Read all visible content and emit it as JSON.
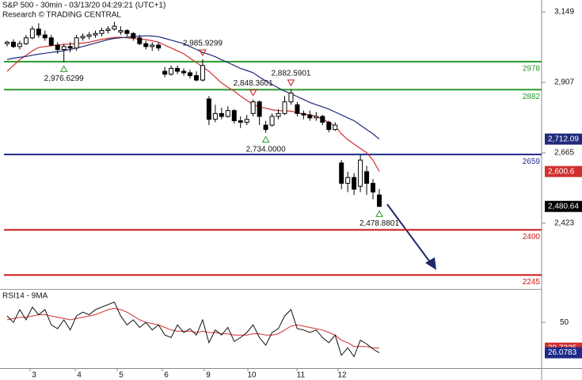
{
  "chart_data": {
    "type": "candlestick",
    "title": "S&P 500 - 30min - 03/13/20 04:29:21 (UTC+1)",
    "subtitle": "Research © TRADING CENTRAL",
    "open": [
      3040,
      3045,
      3030,
      3040,
      3060,
      3090,
      3070,
      3060,
      3035,
      3020,
      3030,
      3025,
      3060,
      3065,
      3070,
      3075,
      3085,
      3090,
      3080,
      3085,
      3075,
      3060,
      3040,
      3030,
      3035,
      2945,
      2935,
      2955,
      2945,
      2940,
      2930,
      2915,
      2850,
      2780,
      2800,
      2790,
      2810,
      2775,
      2770,
      2800,
      2840,
      2760,
      2760,
      2790,
      2800,
      2840,
      2830,
      2800,
      2795,
      2785,
      2790,
      2770,
      2745,
      2630,
      2560,
      2580,
      2550,
      2600,
      2560,
      2520
    ],
    "high": [
      3050,
      3055,
      3050,
      3070,
      3100,
      3110,
      3085,
      3070,
      3045,
      3040,
      3045,
      3070,
      3075,
      3080,
      3085,
      3095,
      3100,
      3115,
      3100,
      3090,
      3080,
      3070,
      3050,
      3045,
      3045,
      2960,
      2965,
      2965,
      2955,
      2950,
      2945,
      2985.9299,
      2860,
      2830,
      2820,
      2825,
      2815,
      2790,
      2795,
      2848.3601,
      2845,
      2775,
      2800,
      2815,
      2860,
      2882.5901,
      2840,
      2810,
      2810,
      2805,
      2795,
      2775,
      2770,
      2640,
      2600,
      2595,
      2659,
      2620,
      2575,
      2540
    ],
    "low": [
      3030,
      3025,
      3020,
      3035,
      3055,
      3060,
      3050,
      3030,
      3005,
      2976.6299,
      3010,
      3015,
      3050,
      3055,
      3060,
      3065,
      3075,
      3085,
      3070,
      3065,
      3050,
      3035,
      3020,
      3015,
      3015,
      2925,
      2930,
      2935,
      2930,
      2920,
      2910,
      2910,
      2760,
      2770,
      2780,
      2785,
      2765,
      2750,
      2760,
      2790,
      2760,
      2734,
      2755,
      2780,
      2795,
      2830,
      2790,
      2780,
      2775,
      2775,
      2760,
      2735,
      2740,
      2540,
      2530,
      2520,
      2530,
      2520,
      2505,
      2478.8801
    ],
    "close": [
      3045,
      3030,
      3040,
      3060,
      3090,
      3070,
      3060,
      3035,
      3020,
      3030,
      3025,
      3060,
      3065,
      3070,
      3075,
      3085,
      3090,
      3100,
      3085,
      3075,
      3060,
      3040,
      3030,
      3035,
      3025,
      2935,
      2955,
      2945,
      2940,
      2930,
      2915,
      2965,
      2780,
      2800,
      2790,
      2810,
      2775,
      2770,
      2780,
      2840,
      2790,
      2745,
      2790,
      2800,
      2840,
      2870,
      2800,
      2795,
      2785,
      2790,
      2770,
      2745,
      2760,
      2560,
      2580,
      2540,
      2640,
      2560,
      2530,
      2480.64
    ],
    "close_last_label": "2,480.64",
    "high_labels": [
      null,
      null,
      null,
      null,
      null,
      null,
      null,
      null,
      null,
      null,
      null,
      null,
      null,
      null,
      null,
      null,
      null,
      null,
      null,
      null,
      null,
      null,
      null,
      null,
      null,
      null,
      null,
      null,
      null,
      null,
      null,
      "2,985.9299",
      null,
      null,
      null,
      null,
      null,
      null,
      null,
      "2,848.3601",
      null,
      null,
      null,
      null,
      null,
      "2,882.5901",
      null,
      null,
      null,
      null,
      null,
      null,
      null,
      null,
      null,
      null,
      null,
      null,
      null,
      null
    ],
    "low_labels": [
      null,
      null,
      null,
      null,
      null,
      null,
      null,
      null,
      null,
      "2,976.6299",
      null,
      null,
      null,
      null,
      null,
      null,
      null,
      null,
      null,
      null,
      null,
      null,
      null,
      null,
      null,
      null,
      null,
      null,
      null,
      null,
      null,
      null,
      null,
      null,
      null,
      null,
      null,
      null,
      null,
      null,
      null,
      "2,734.0000",
      null,
      null,
      null,
      null,
      null,
      null,
      null,
      null,
      null,
      null,
      null,
      null,
      null,
      null,
      null,
      null,
      null,
      "2,478.8801"
    ],
    "series": [
      {
        "color": "#d03030",
        "last_label": "2,600.6",
        "values": [
          2945,
          2965,
          2985,
          3000,
          3015,
          3027,
          3030,
          3033,
          3035,
          3037,
          3039,
          3040,
          3042,
          3045,
          3050,
          3055,
          3058,
          3061,
          3062,
          3060,
          3058,
          3056,
          3054,
          3050,
          3045,
          3035,
          3025,
          3015,
          3005,
          2990,
          2975,
          2960,
          2945,
          2925,
          2905,
          2890,
          2877,
          2860,
          2845,
          2830,
          2823,
          2818,
          2813,
          2810,
          2809,
          2808,
          2803,
          2798,
          2795,
          2790,
          2780,
          2770,
          2757,
          2730,
          2710,
          2695,
          2680,
          2665,
          2640,
          2600.6
        ]
      },
      {
        "color": "#1f2a7a",
        "last_label": "2,712.09",
        "values": [
          2986,
          2990,
          2993,
          2996,
          3000,
          3004,
          3007,
          3010,
          3013,
          3016,
          3020,
          3025,
          3030,
          3036,
          3042,
          3048,
          3054,
          3058,
          3060,
          3062,
          3064,
          3066,
          3067,
          3066,
          3064,
          3058,
          3052,
          3046,
          3040,
          3030,
          3020,
          3010,
          3003,
          2995,
          2985,
          2975,
          2965,
          2955,
          2948,
          2940,
          2925,
          2912,
          2900,
          2888,
          2877,
          2868,
          2858,
          2848,
          2838,
          2830,
          2823,
          2815,
          2805,
          2795,
          2785,
          2775,
          2760,
          2745,
          2730,
          2712.09
        ]
      }
    ],
    "ylim": [
      2197,
      3190
    ],
    "yticks": [
      {
        "value": 3149,
        "label": "3,149"
      },
      {
        "value": 2907,
        "label": "2,907"
      },
      {
        "value": 2665,
        "label": "2,665"
      },
      {
        "value": 2423,
        "label": "2,423"
      }
    ],
    "levels": [
      {
        "value": 2978,
        "color": "#2a9a2a"
      },
      {
        "value": 2882,
        "color": "#2a9a2a"
      },
      {
        "value": 2659,
        "color": "#1f2a8a"
      },
      {
        "value": 2400,
        "color": "#cc1515"
      },
      {
        "value": 2245,
        "color": "#cc1515"
      }
    ],
    "xlabels": [
      "3",
      "4",
      "5",
      "6",
      "9",
      "10",
      "11",
      "12"
    ],
    "rsi": {
      "title": "RSI14 - 9MA",
      "ylim": [
        14,
        75
      ],
      "yticks": [
        50
      ],
      "series": [
        {
          "color": "#d03030",
          "box_color": "#d03030",
          "values": [
            52,
            53,
            54,
            54,
            55,
            56,
            56,
            55,
            54,
            53,
            52,
            53,
            54,
            55,
            56,
            58,
            60,
            61,
            60,
            58,
            55,
            52,
            50,
            49,
            48,
            46,
            44,
            43,
            43,
            43,
            42,
            43,
            42,
            42,
            41,
            41,
            40,
            40,
            40,
            41,
            41,
            40,
            40,
            41,
            44,
            47,
            48,
            47,
            46,
            45,
            44,
            42,
            40,
            36,
            34,
            31,
            31,
            31,
            30,
            29.7325
          ]
        },
        {
          "color": "#111111",
          "box_color": "#1f2a8a",
          "values": [
            55,
            50,
            60,
            52,
            62,
            56,
            60,
            48,
            45,
            52,
            44,
            55,
            58,
            56,
            60,
            62,
            64,
            66,
            55,
            48,
            52,
            46,
            50,
            44,
            48,
            40,
            38,
            48,
            42,
            45,
            40,
            52,
            34,
            44,
            40,
            46,
            35,
            38,
            42,
            48,
            38,
            32,
            42,
            45,
            55,
            60,
            45,
            44,
            42,
            44,
            38,
            34,
            40,
            24,
            30,
            23,
            36,
            33,
            29,
            26.0783
          ]
        }
      ]
    }
  }
}
